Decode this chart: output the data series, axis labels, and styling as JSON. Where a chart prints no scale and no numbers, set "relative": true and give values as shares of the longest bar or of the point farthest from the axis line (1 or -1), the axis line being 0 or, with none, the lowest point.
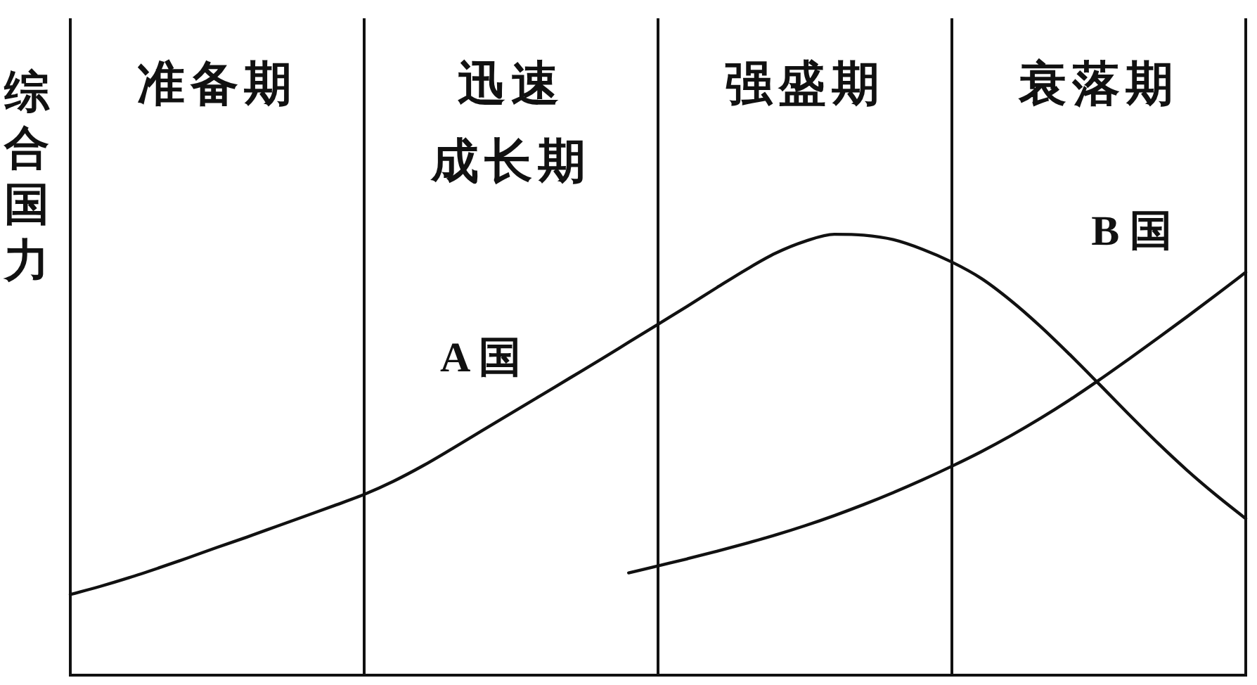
{
  "chart_data": {
    "type": "line",
    "relative": true,
    "ylabel": "综合国力",
    "line_style": "solid",
    "grid": "x",
    "categories": [
      null,
      null,
      null,
      null,
      null,
      null,
      null,
      null,
      null,
      null,
      null,
      null,
      null,
      null,
      null,
      null,
      null,
      null,
      null,
      null,
      null,
      null,
      null,
      null,
      null,
      null,
      null,
      null,
      null,
      null,
      null,
      null,
      null,
      null,
      null,
      null,
      null,
      null,
      null,
      null,
      null
    ],
    "series": [
      {
        "name": "A 国",
        "color": "#111111",
        "values": [
          0.183,
          0.201,
          0.221,
          0.243,
          0.266,
          0.29,
          0.313,
          0.337,
          0.361,
          0.385,
          0.41,
          0.44,
          0.475,
          0.514,
          0.554,
          0.594,
          0.634,
          0.674,
          0.714,
          0.755,
          0.796,
          0.837,
          0.879,
          0.92,
          0.957,
          0.984,
          1,
          0.998,
          0.988,
          0.966,
          0.937,
          0.9,
          0.85,
          0.792,
          0.728,
          0.661,
          0.593,
          0.527,
          0.465,
          0.408,
          0.355
        ]
      },
      {
        "name": "B 国",
        "color": "#111111",
        "values": [
          null,
          null,
          null,
          null,
          null,
          null,
          null,
          null,
          null,
          null,
          null,
          null,
          null,
          null,
          null,
          null,
          null,
          null,
          null,
          0.232,
          0.248,
          0.264,
          0.281,
          0.299,
          0.318,
          0.339,
          0.362,
          0.387,
          0.414,
          0.443,
          0.474,
          0.507,
          0.543,
          0.582,
          0.624,
          0.669,
          0.716,
          0.764,
          0.813,
          0.863,
          0.914
        ]
      }
    ],
    "annotations": [
      "准备期",
      "迅速成长期",
      "强盛期",
      "衰落期"
    ]
  }
}
